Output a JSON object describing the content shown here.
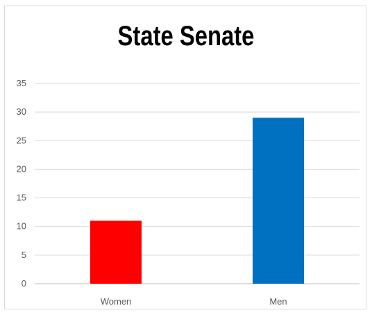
{
  "chart_data": {
    "type": "bar",
    "title": "State Senate",
    "categories": [
      "Women",
      "Men"
    ],
    "values": [
      11,
      29
    ],
    "colors": [
      "#ff0000",
      "#0070c0"
    ],
    "ylim": [
      0,
      35
    ],
    "yticks": [
      0,
      5,
      10,
      15,
      20,
      25,
      30,
      35
    ],
    "grid": true,
    "legend": "none"
  }
}
